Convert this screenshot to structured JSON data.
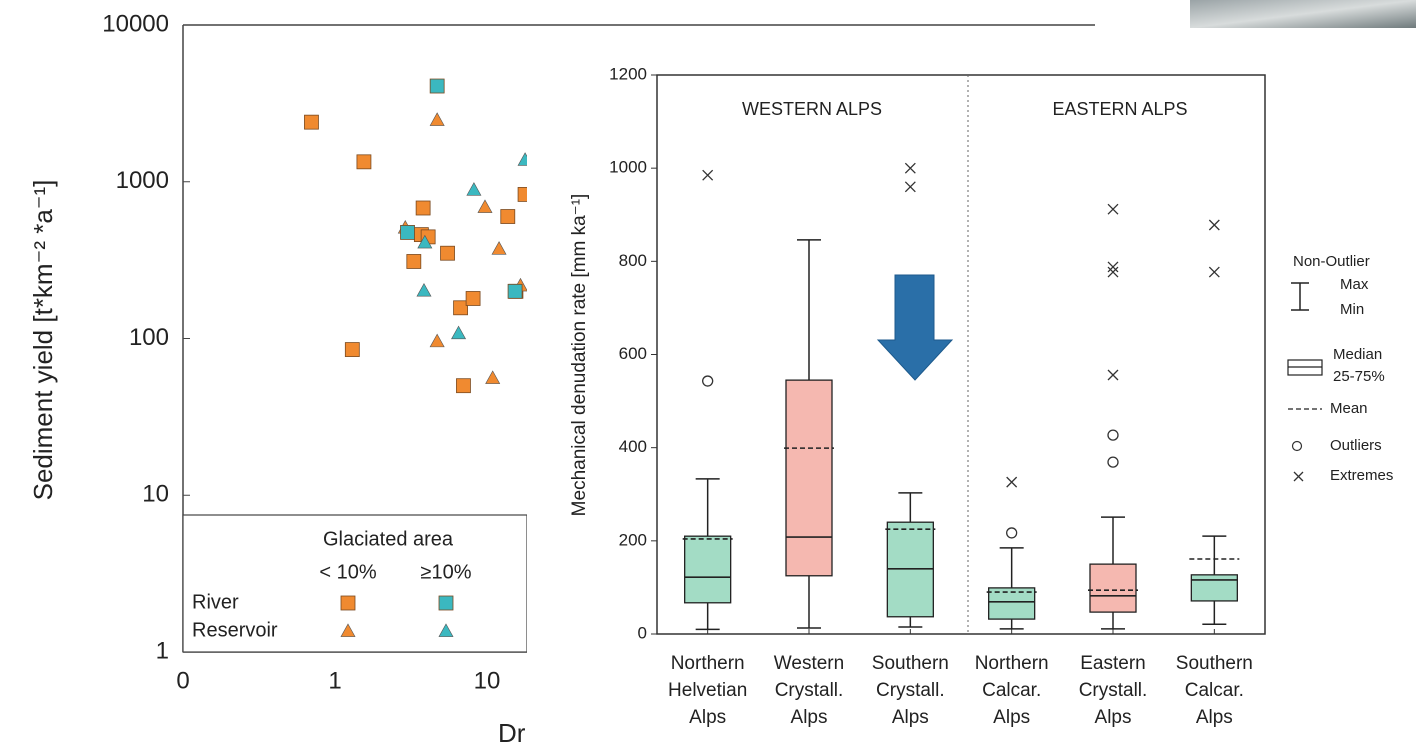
{
  "chart_data": [
    {
      "type": "scatter",
      "xscale": "log",
      "yscale": "log",
      "x_label": "Dr",
      "y_label": "Sediment yield  [t*km⁻² *a⁻¹]",
      "xlim": [
        0.1,
        100000
      ],
      "ylim": [
        1,
        10000
      ],
      "xticks": [
        {
          "value": 0.1,
          "label": "0"
        },
        1,
        10
      ],
      "yticks": [
        1,
        10,
        100,
        1000,
        10000
      ],
      "legend": {
        "title": "Glaciated area",
        "columns": [
          "< 10%",
          "≥10%"
        ],
        "rows": [
          "River",
          "Reservoir"
        ]
      },
      "series": [
        {
          "color": "#f08a30",
          "marker": "square",
          "x": [
            0.7,
            1.55,
            1.3,
            3.8,
            3.3,
            3.7,
            4.1,
            5.5,
            6.7,
            8.1,
            7.0,
            13.7,
            15.5,
            17.8
          ],
          "values": [
            2400,
            1340,
            85,
            680,
            310,
            460,
            445,
            350,
            157,
            180,
            50,
            600,
            200,
            830
          ]
        },
        {
          "color": "#f08a30",
          "marker": "triangle",
          "x": [
            4.7,
            2.9,
            9.7,
            12,
            4.7,
            10.9,
            16.6
          ],
          "values": [
            2480,
            510,
            690,
            374,
            96,
            56,
            218
          ]
        },
        {
          "color": "#3bb8c0",
          "marker": "square",
          "x": [
            4.7,
            3.0,
            15.3
          ],
          "values": [
            4080,
            475,
            200
          ]
        },
        {
          "color": "#3bb8c0",
          "marker": "triangle",
          "x": [
            3.9,
            3.85,
            8.2,
            6.5,
            17.8
          ],
          "values": [
            410,
            202,
            890,
            108,
            1380
          ]
        }
      ]
    },
    {
      "type": "box",
      "y_label": "Mechanical denudation rate [mm ka⁻¹]",
      "ylim": [
        0,
        1200
      ],
      "yticks": [
        0,
        200,
        400,
        600,
        800,
        1000,
        1200
      ],
      "region_labels": [
        "WESTERN ALPS",
        "EASTERN ALPS"
      ],
      "categories": [
        "Northern Helvetian Alps",
        "Western Crystall. Alps",
        "Southern Crystall. Alps",
        "Northern Calcar. Alps",
        "Eastern Crystall. Alps",
        "Southern Calcar. Alps"
      ],
      "legend": {
        "title": "Non-Outlier",
        "range": [
          "Max",
          "Min"
        ],
        "box": [
          "Median",
          "25-75%"
        ],
        "mean": "Mean",
        "outliers": "Outliers",
        "extremes": "Extremes"
      },
      "boxes": [
        {
          "color": "#a3dcc5",
          "min": 10,
          "q1": 67,
          "median": 122,
          "mean": 204,
          "q3": 210,
          "max": 333,
          "outliers": [
            543
          ],
          "extremes": [
            985
          ]
        },
        {
          "color": "#f5b8b0",
          "min": 13,
          "q1": 125,
          "median": 208,
          "mean": 399,
          "q3": 545,
          "max": 846,
          "outliers": [],
          "extremes": []
        },
        {
          "color": "#a3dcc5",
          "min": 15,
          "q1": 37,
          "median": 140,
          "mean": 225,
          "q3": 240,
          "max": 303,
          "outliers": [],
          "extremes": [
            1000,
            960
          ]
        },
        {
          "color": "#a3dcc5",
          "min": 11,
          "q1": 32,
          "median": 69,
          "mean": 90,
          "q3": 99,
          "max": 185,
          "outliers": [
            217
          ],
          "extremes": [
            326
          ]
        },
        {
          "color": "#f5b8b0",
          "min": 11,
          "q1": 47,
          "median": 82,
          "mean": 94,
          "q3": 150,
          "max": 251,
          "outliers": [
            427,
            369
          ],
          "extremes": [
            912,
            788,
            777,
            556
          ]
        },
        {
          "color": "#a3dcc5",
          "min": 21,
          "q1": 71,
          "median": 116,
          "mean": 161,
          "q3": 127,
          "max": 210,
          "outliers": [],
          "extremes": [
            878,
            777
          ]
        }
      ]
    }
  ]
}
